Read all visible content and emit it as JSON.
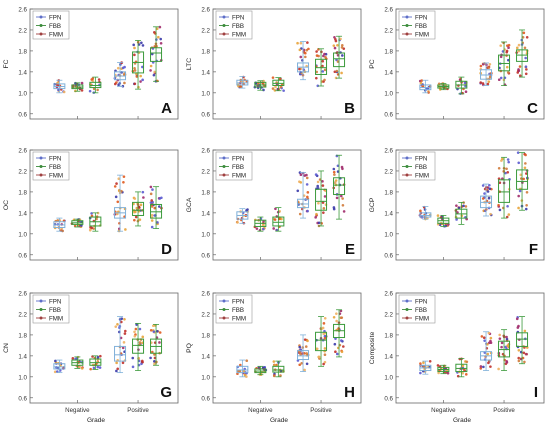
{
  "figure": {
    "panel_order": [
      "A",
      "B",
      "C",
      "D",
      "E",
      "F",
      "G",
      "H",
      "I"
    ]
  },
  "legend_items": [
    {
      "name": "FPN",
      "color": "#5e6ec8"
    },
    {
      "name": "FBB",
      "color": "#3c8c3c"
    },
    {
      "name": "FMM",
      "color": "#a04040"
    }
  ],
  "chart_data": [
    {
      "type": "box",
      "panel_letter": "A",
      "ylabel": "FC",
      "xlabel": "",
      "ylim": [
        0.5,
        2.6
      ],
      "yticks": [
        0.6,
        1.0,
        1.4,
        1.8,
        2.2,
        2.6
      ],
      "categories": [
        "Negative",
        "Positive"
      ],
      "legend_placement": "top-left",
      "series": [
        {
          "name": "FPN",
          "boxes": [
            {
              "min": 1.0,
              "q1": 1.08,
              "median": 1.12,
              "q3": 1.17,
              "max": 1.24
            },
            {
              "min": 1.12,
              "q1": 1.25,
              "median": 1.32,
              "q3": 1.4,
              "max": 1.58
            }
          ]
        },
        {
          "name": "FBB",
          "boxes": [
            {
              "min": 1.03,
              "q1": 1.08,
              "median": 1.11,
              "q3": 1.15,
              "max": 1.19
            },
            {
              "min": 1.07,
              "q1": 1.38,
              "median": 1.58,
              "q3": 1.78,
              "max": 2.0
            }
          ]
        },
        {
          "name": "FMM",
          "boxes": [
            {
              "min": 1.0,
              "q1": 1.1,
              "median": 1.14,
              "q3": 1.2,
              "max": 1.3
            },
            {
              "min": 1.22,
              "q1": 1.6,
              "median": 1.76,
              "q3": 1.86,
              "max": 2.26
            }
          ]
        }
      ]
    },
    {
      "type": "box",
      "panel_letter": "B",
      "ylabel": "LTC",
      "xlabel": "",
      "ylim": [
        0.5,
        2.6
      ],
      "yticks": [
        0.6,
        1.0,
        1.4,
        1.8,
        2.2,
        2.6
      ],
      "categories": [
        "Negative",
        "Positive"
      ],
      "legend_placement": "top-left",
      "series": [
        {
          "name": "FPN",
          "boxes": [
            {
              "min": 1.09,
              "q1": 1.15,
              "median": 1.19,
              "q3": 1.24,
              "max": 1.31
            },
            {
              "min": 1.25,
              "q1": 1.4,
              "median": 1.49,
              "q3": 1.57,
              "max": 1.98
            }
          ]
        },
        {
          "name": "FBB",
          "boxes": [
            {
              "min": 1.05,
              "q1": 1.11,
              "median": 1.15,
              "q3": 1.2,
              "max": 1.23
            },
            {
              "min": 1.13,
              "q1": 1.35,
              "median": 1.48,
              "q3": 1.64,
              "max": 1.84
            }
          ]
        },
        {
          "name": "FMM",
          "boxes": [
            {
              "min": 1.04,
              "q1": 1.14,
              "median": 1.18,
              "q3": 1.24,
              "max": 1.29
            },
            {
              "min": 1.28,
              "q1": 1.5,
              "median": 1.65,
              "q3": 1.76,
              "max": 2.08
            }
          ]
        }
      ]
    },
    {
      "type": "box",
      "panel_letter": "C",
      "ylabel": "PC",
      "xlabel": "",
      "ylim": [
        0.5,
        2.6
      ],
      "yticks": [
        0.6,
        1.0,
        1.4,
        1.8,
        2.2,
        2.6
      ],
      "categories": [
        "Negative",
        "Positive"
      ],
      "legend_placement": "top-left",
      "series": [
        {
          "name": "FPN",
          "boxes": [
            {
              "min": 1.0,
              "q1": 1.06,
              "median": 1.1,
              "q3": 1.15,
              "max": 1.24
            },
            {
              "min": 1.14,
              "q1": 1.26,
              "median": 1.34,
              "q3": 1.44,
              "max": 1.57
            }
          ]
        },
        {
          "name": "FBB",
          "boxes": [
            {
              "min": 1.06,
              "q1": 1.09,
              "median": 1.12,
              "q3": 1.15,
              "max": 1.18
            },
            {
              "min": 1.14,
              "q1": 1.42,
              "median": 1.56,
              "q3": 1.72,
              "max": 1.97
            }
          ]
        },
        {
          "name": "FMM",
          "boxes": [
            {
              "min": 0.98,
              "q1": 1.09,
              "median": 1.15,
              "q3": 1.22,
              "max": 1.3
            },
            {
              "min": 1.3,
              "q1": 1.6,
              "median": 1.72,
              "q3": 1.82,
              "max": 2.2
            }
          ]
        }
      ]
    },
    {
      "type": "box",
      "panel_letter": "D",
      "ylabel": "OC",
      "xlabel": "",
      "ylim": [
        0.5,
        2.6
      ],
      "yticks": [
        0.6,
        1.0,
        1.4,
        1.8,
        2.2,
        2.6
      ],
      "categories": [
        "Negative",
        "Positive"
      ],
      "legend_placement": "top-left",
      "series": [
        {
          "name": "FPN",
          "boxes": [
            {
              "min": 1.05,
              "q1": 1.12,
              "median": 1.17,
              "q3": 1.23,
              "max": 1.3
            },
            {
              "min": 1.05,
              "q1": 1.3,
              "median": 1.4,
              "q3": 1.5,
              "max": 2.12
            }
          ]
        },
        {
          "name": "FBB",
          "boxes": [
            {
              "min": 1.13,
              "q1": 1.18,
              "median": 1.21,
              "q3": 1.25,
              "max": 1.28
            },
            {
              "min": 1.15,
              "q1": 1.35,
              "median": 1.45,
              "q3": 1.6,
              "max": 1.8
            }
          ]
        },
        {
          "name": "FMM",
          "boxes": [
            {
              "min": 1.05,
              "q1": 1.15,
              "median": 1.23,
              "q3": 1.32,
              "max": 1.4
            },
            {
              "min": 1.1,
              "q1": 1.3,
              "median": 1.42,
              "q3": 1.56,
              "max": 1.9
            }
          ]
        }
      ]
    },
    {
      "type": "box",
      "panel_letter": "E",
      "ylabel": "GCA",
      "xlabel": "",
      "ylim": [
        0.5,
        2.6
      ],
      "yticks": [
        0.6,
        1.0,
        1.4,
        1.8,
        2.2,
        2.6
      ],
      "categories": [
        "Negative",
        "Positive"
      ],
      "legend_placement": "top-left",
      "series": [
        {
          "name": "FPN",
          "boxes": [
            {
              "min": 1.2,
              "q1": 1.28,
              "median": 1.35,
              "q3": 1.42,
              "max": 1.48
            },
            {
              "min": 1.3,
              "q1": 1.5,
              "median": 1.57,
              "q3": 1.66,
              "max": 2.17
            }
          ]
        },
        {
          "name": "FBB",
          "boxes": [
            {
              "min": 1.05,
              "q1": 1.14,
              "median": 1.2,
              "q3": 1.26,
              "max": 1.32
            },
            {
              "min": 1.15,
              "q1": 1.45,
              "median": 1.62,
              "q3": 1.85,
              "max": 2.2
            }
          ]
        },
        {
          "name": "FMM",
          "boxes": [
            {
              "min": 1.05,
              "q1": 1.15,
              "median": 1.22,
              "q3": 1.32,
              "max": 1.5
            },
            {
              "min": 1.28,
              "q1": 1.75,
              "median": 1.93,
              "q3": 2.07,
              "max": 2.5
            }
          ]
        }
      ]
    },
    {
      "type": "box",
      "panel_letter": "F",
      "ylabel": "GCP",
      "xlabel": "",
      "ylim": [
        0.5,
        2.6
      ],
      "yticks": [
        0.6,
        1.0,
        1.4,
        1.8,
        2.2,
        2.6
      ],
      "categories": [
        "Negative",
        "Positive"
      ],
      "legend_placement": "top-left",
      "series": [
        {
          "name": "FPN",
          "boxes": [
            {
              "min": 1.28,
              "q1": 1.32,
              "median": 1.35,
              "q3": 1.4,
              "max": 1.52
            },
            {
              "min": 1.34,
              "q1": 1.5,
              "median": 1.6,
              "q3": 1.72,
              "max": 1.95
            }
          ]
        },
        {
          "name": "FBB",
          "boxes": [
            {
              "min": 1.14,
              "q1": 1.2,
              "median": 1.25,
              "q3": 1.3,
              "max": 1.35
            },
            {
              "min": 1.3,
              "q1": 1.6,
              "median": 1.8,
              "q3": 2.03,
              "max": 2.46
            }
          ]
        },
        {
          "name": "FMM",
          "boxes": [
            {
              "min": 1.18,
              "q1": 1.3,
              "median": 1.38,
              "q3": 1.47,
              "max": 1.6
            },
            {
              "min": 1.45,
              "q1": 1.85,
              "median": 2.0,
              "q3": 2.22,
              "max": 2.55
            }
          ]
        }
      ]
    },
    {
      "type": "box",
      "panel_letter": "G",
      "ylabel": "CN",
      "xlabel": "Grade",
      "ylim": [
        0.5,
        2.6
      ],
      "yticks": [
        0.6,
        1.0,
        1.4,
        1.8,
        2.2,
        2.6
      ],
      "categories": [
        "Negative",
        "Positive"
      ],
      "legend_placement": "top-left",
      "series": [
        {
          "name": "FPN",
          "boxes": [
            {
              "min": 1.08,
              "q1": 1.15,
              "median": 1.19,
              "q3": 1.25,
              "max": 1.32
            },
            {
              "min": 1.08,
              "q1": 1.3,
              "median": 1.42,
              "q3": 1.58,
              "max": 2.15
            }
          ]
        },
        {
          "name": "FBB",
          "boxes": [
            {
              "min": 1.16,
              "q1": 1.22,
              "median": 1.27,
              "q3": 1.32,
              "max": 1.38
            },
            {
              "min": 1.12,
              "q1": 1.45,
              "median": 1.6,
              "q3": 1.72,
              "max": 2.02
            }
          ]
        },
        {
          "name": "FMM",
          "boxes": [
            {
              "min": 1.14,
              "q1": 1.22,
              "median": 1.27,
              "q3": 1.34,
              "max": 1.4
            },
            {
              "min": 1.22,
              "q1": 1.45,
              "median": 1.58,
              "q3": 1.72,
              "max": 2.0
            }
          ]
        }
      ]
    },
    {
      "type": "box",
      "panel_letter": "H",
      "ylabel": "PQ",
      "xlabel": "Grade",
      "ylim": [
        0.5,
        2.6
      ],
      "yticks": [
        0.6,
        1.0,
        1.4,
        1.8,
        2.2,
        2.6
      ],
      "categories": [
        "Negative",
        "Positive"
      ],
      "legend_placement": "top-left",
      "series": [
        {
          "name": "FPN",
          "boxes": [
            {
              "min": 1.0,
              "q1": 1.08,
              "median": 1.13,
              "q3": 1.2,
              "max": 1.32
            },
            {
              "min": 1.1,
              "q1": 1.33,
              "median": 1.4,
              "q3": 1.5,
              "max": 1.8
            }
          ]
        },
        {
          "name": "FBB",
          "boxes": [
            {
              "min": 1.04,
              "q1": 1.08,
              "median": 1.11,
              "q3": 1.15,
              "max": 1.2
            },
            {
              "min": 1.2,
              "q1": 1.5,
              "median": 1.7,
              "q3": 1.85,
              "max": 2.15
            }
          ]
        },
        {
          "name": "FMM",
          "boxes": [
            {
              "min": 1.0,
              "q1": 1.09,
              "median": 1.13,
              "q3": 1.2,
              "max": 1.3
            },
            {
              "min": 1.38,
              "q1": 1.75,
              "median": 1.88,
              "q3": 2.0,
              "max": 2.28
            }
          ]
        }
      ]
    },
    {
      "type": "box",
      "panel_letter": "I",
      "ylabel": "Composite",
      "xlabel": "Grade",
      "ylim": [
        0.5,
        2.6
      ],
      "yticks": [
        0.6,
        1.0,
        1.4,
        1.8,
        2.2,
        2.6
      ],
      "categories": [
        "Negative",
        "Positive"
      ],
      "legend_placement": "top-left",
      "series": [
        {
          "name": "FPN",
          "boxes": [
            {
              "min": 1.05,
              "q1": 1.12,
              "median": 1.17,
              "q3": 1.22,
              "max": 1.3
            },
            {
              "min": 1.12,
              "q1": 1.32,
              "median": 1.4,
              "q3": 1.48,
              "max": 1.86
            }
          ]
        },
        {
          "name": "FBB",
          "boxes": [
            {
              "min": 1.06,
              "q1": 1.1,
              "median": 1.14,
              "q3": 1.18,
              "max": 1.22
            },
            {
              "min": 1.12,
              "q1": 1.38,
              "median": 1.52,
              "q3": 1.68,
              "max": 1.9
            }
          ]
        },
        {
          "name": "FMM",
          "boxes": [
            {
              "min": 1.0,
              "q1": 1.1,
              "median": 1.16,
              "q3": 1.24,
              "max": 1.35
            },
            {
              "min": 1.25,
              "q1": 1.58,
              "median": 1.72,
              "q3": 1.84,
              "max": 2.15
            }
          ]
        }
      ]
    }
  ]
}
